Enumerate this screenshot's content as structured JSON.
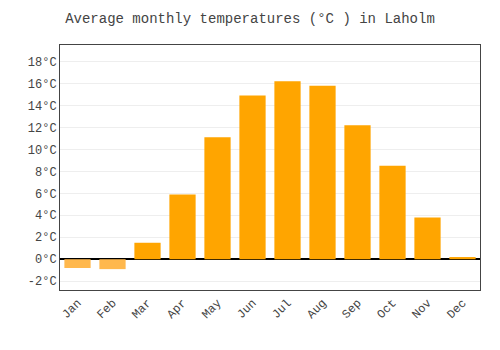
{
  "chart_data": {
    "type": "bar",
    "title": "Average monthly temperatures (°C ) in Laholm",
    "categories": [
      "Jan",
      "Feb",
      "Mar",
      "Apr",
      "May",
      "Jun",
      "Jul",
      "Aug",
      "Sep",
      "Oct",
      "Nov",
      "Dec"
    ],
    "values": [
      -0.8,
      -0.9,
      1.5,
      5.9,
      11.1,
      14.9,
      16.2,
      15.8,
      12.2,
      8.5,
      3.8,
      0.2
    ],
    "colors": [
      "#FFB84D",
      "#FFB84D",
      "#FFA500",
      "#FFA500",
      "#FFA500",
      "#FFA500",
      "#FFA500",
      "#FFA500",
      "#FFA500",
      "#FFA500",
      "#FFA500",
      "#FFA500"
    ],
    "ylim": [
      -2.8,
      19.5
    ],
    "yticks": [
      {
        "value": -2,
        "label": "-2°C"
      },
      {
        "value": 0,
        "label": "0°C"
      },
      {
        "value": 2,
        "label": "2°C"
      },
      {
        "value": 4,
        "label": "4°C"
      },
      {
        "value": 6,
        "label": "6°C"
      },
      {
        "value": 8,
        "label": "8°C"
      },
      {
        "value": 10,
        "label": "10°C"
      },
      {
        "value": 12,
        "label": "12°C"
      },
      {
        "value": 14,
        "label": "14°C"
      },
      {
        "value": 16,
        "label": "16°C"
      },
      {
        "value": 18,
        "label": "18°C"
      }
    ],
    "grid": true
  }
}
